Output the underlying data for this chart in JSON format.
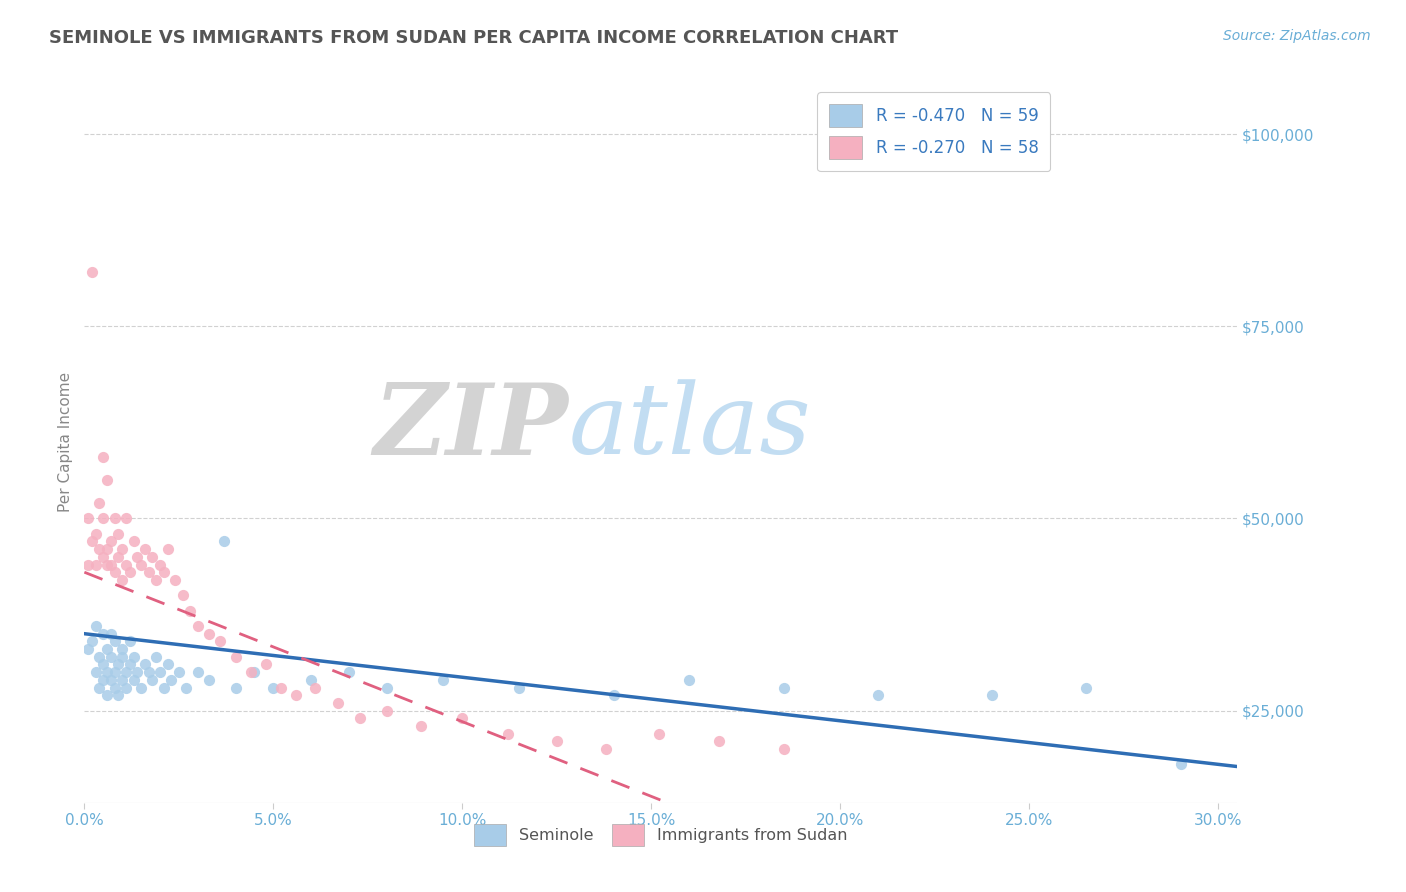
{
  "title": "SEMINOLE VS IMMIGRANTS FROM SUDAN PER CAPITA INCOME CORRELATION CHART",
  "source": "Source: ZipAtlas.com",
  "ylabel": "Per Capita Income",
  "xlim": [
    0.0,
    0.305
  ],
  "ylim": [
    13000,
    107000
  ],
  "xticks": [
    0.0,
    0.05,
    0.1,
    0.15,
    0.2,
    0.25,
    0.3
  ],
  "xtick_labels": [
    "0.0%",
    "5.0%",
    "10.0%",
    "15.0%",
    "20.0%",
    "25.0%",
    "30.0%"
  ],
  "yticks": [
    25000,
    50000,
    75000,
    100000
  ],
  "ytick_labels": [
    "$25,000",
    "$50,000",
    "$75,000",
    "$100,000"
  ],
  "seminole_R": -0.47,
  "seminole_N": 59,
  "sudan_R": -0.27,
  "sudan_N": 58,
  "blue_scatter_color": "#a8cce8",
  "pink_scatter_color": "#f5b0c0",
  "blue_line_color": "#2e6db4",
  "pink_line_color": "#e06080",
  "title_color": "#555555",
  "axis_tick_color": "#6aaed6",
  "legend_text_color": "#3a7abf",
  "watermark_zip_color": "#c8c8c8",
  "watermark_atlas_color": "#b8d8f0",
  "background_color": "#ffffff",
  "grid_color": "#cccccc",
  "seminole_x": [
    0.001,
    0.002,
    0.003,
    0.003,
    0.004,
    0.004,
    0.005,
    0.005,
    0.005,
    0.006,
    0.006,
    0.006,
    0.007,
    0.007,
    0.007,
    0.008,
    0.008,
    0.008,
    0.009,
    0.009,
    0.01,
    0.01,
    0.01,
    0.011,
    0.011,
    0.012,
    0.012,
    0.013,
    0.013,
    0.014,
    0.015,
    0.016,
    0.017,
    0.018,
    0.019,
    0.02,
    0.021,
    0.022,
    0.023,
    0.025,
    0.027,
    0.03,
    0.033,
    0.037,
    0.04,
    0.045,
    0.05,
    0.06,
    0.07,
    0.08,
    0.095,
    0.115,
    0.14,
    0.16,
    0.185,
    0.21,
    0.24,
    0.265,
    0.29
  ],
  "seminole_y": [
    33000,
    34000,
    30000,
    36000,
    28000,
    32000,
    31000,
    35000,
    29000,
    30000,
    33000,
    27000,
    32000,
    29000,
    35000,
    30000,
    28000,
    34000,
    31000,
    27000,
    32000,
    29000,
    33000,
    30000,
    28000,
    31000,
    34000,
    29000,
    32000,
    30000,
    28000,
    31000,
    30000,
    29000,
    32000,
    30000,
    28000,
    31000,
    29000,
    30000,
    28000,
    30000,
    29000,
    47000,
    28000,
    30000,
    28000,
    29000,
    30000,
    28000,
    29000,
    28000,
    27000,
    29000,
    28000,
    27000,
    27000,
    28000,
    18000
  ],
  "sudan_x": [
    0.001,
    0.001,
    0.002,
    0.002,
    0.003,
    0.003,
    0.004,
    0.004,
    0.005,
    0.005,
    0.005,
    0.006,
    0.006,
    0.006,
    0.007,
    0.007,
    0.008,
    0.008,
    0.009,
    0.009,
    0.01,
    0.01,
    0.011,
    0.011,
    0.012,
    0.013,
    0.014,
    0.015,
    0.016,
    0.017,
    0.018,
    0.019,
    0.02,
    0.021,
    0.022,
    0.024,
    0.026,
    0.028,
    0.03,
    0.033,
    0.036,
    0.04,
    0.044,
    0.048,
    0.052,
    0.056,
    0.061,
    0.067,
    0.073,
    0.08,
    0.089,
    0.1,
    0.112,
    0.125,
    0.138,
    0.152,
    0.168,
    0.185
  ],
  "sudan_y": [
    44000,
    50000,
    47000,
    82000,
    44000,
    48000,
    46000,
    52000,
    45000,
    50000,
    58000,
    44000,
    46000,
    55000,
    44000,
    47000,
    50000,
    43000,
    45000,
    48000,
    42000,
    46000,
    44000,
    50000,
    43000,
    47000,
    45000,
    44000,
    46000,
    43000,
    45000,
    42000,
    44000,
    43000,
    46000,
    42000,
    40000,
    38000,
    36000,
    35000,
    34000,
    32000,
    30000,
    31000,
    28000,
    27000,
    28000,
    26000,
    24000,
    25000,
    23000,
    24000,
    22000,
    21000,
    20000,
    22000,
    21000,
    20000
  ]
}
